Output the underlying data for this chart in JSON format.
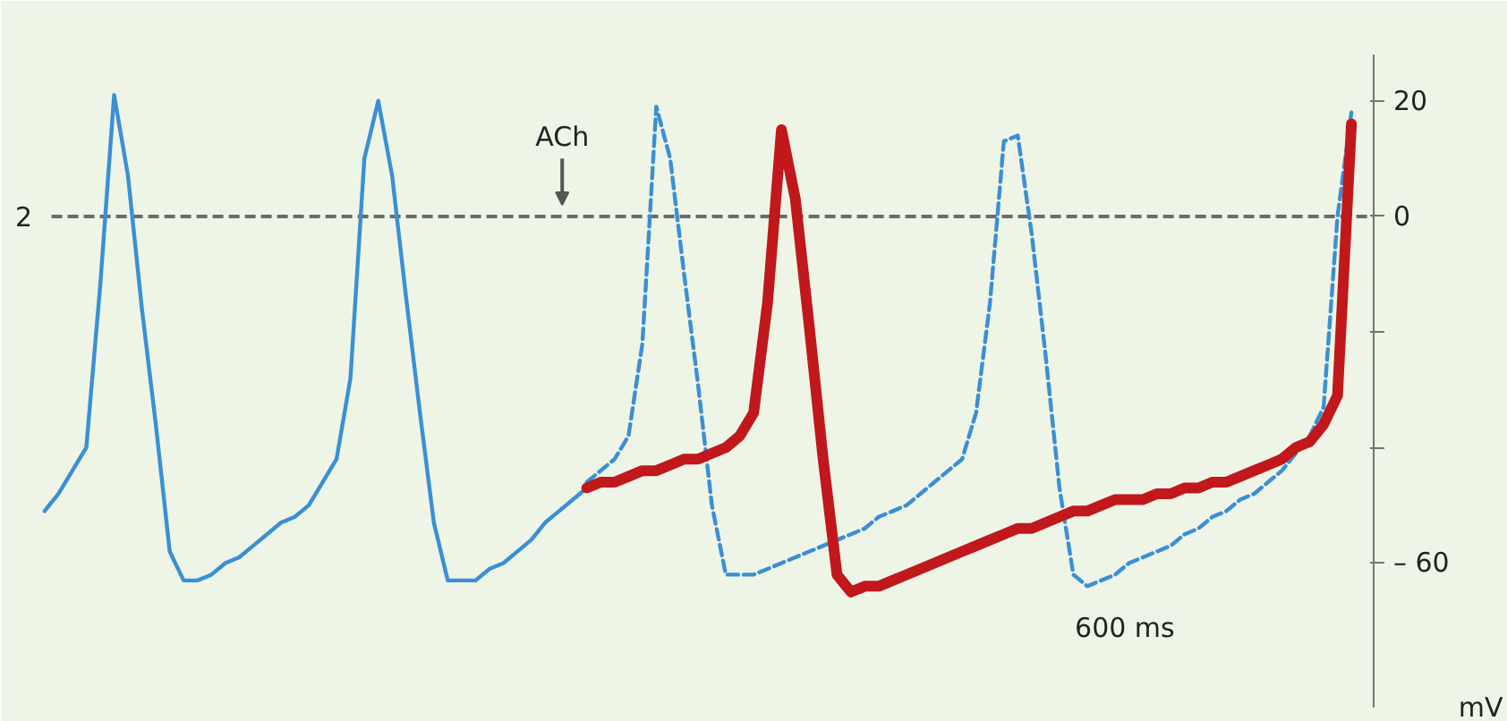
{
  "chart_data": {
    "type": "line",
    "ylabel": "mV",
    "ylim": [
      -85,
      28
    ],
    "yticks": [
      20,
      0,
      {
        "value": -20,
        "label": null
      },
      {
        "value": -40,
        "label": null
      },
      {
        "value": -60,
        "label": "– 60"
      }
    ],
    "tick_labels": "y",
    "grid": false,
    "marker": "none",
    "categories": [
      null,
      null,
      null,
      null,
      null,
      null,
      null,
      null,
      null,
      null,
      null,
      null,
      null,
      null,
      null,
      null,
      null,
      null,
      null,
      null,
      null,
      null,
      null,
      null,
      null,
      null,
      null,
      null,
      null,
      null,
      null,
      null,
      null,
      null,
      null,
      null,
      null,
      null,
      null,
      null,
      null,
      null,
      null,
      null,
      null,
      null,
      null,
      null,
      null,
      null,
      null,
      null,
      null,
      null,
      null,
      null,
      null,
      null,
      null,
      null,
      null,
      null,
      null,
      null,
      null,
      null,
      null,
      null,
      null,
      null,
      null,
      null,
      null,
      null,
      null,
      null,
      null,
      null,
      null,
      null,
      null,
      null,
      null,
      null,
      null,
      null,
      null,
      null,
      null,
      null,
      null,
      null,
      null,
      null,
      null
    ],
    "series": [
      {
        "color": "#3b8fd6",
        "line_style": "solid",
        "values": [
          -51,
          -48,
          -44,
          -40,
          -12,
          21,
          7,
          -16,
          -36,
          -58,
          -63,
          -63,
          -62,
          -60,
          -59,
          -57,
          -55,
          -53,
          -52,
          -50,
          -46,
          -42,
          -28,
          10,
          20,
          7,
          -14,
          -34,
          -53,
          -63,
          -63,
          -63,
          -61,
          -60,
          -58,
          -56,
          -53,
          -51,
          -49,
          -47,
          null,
          null,
          null,
          null,
          null,
          null,
          null,
          null,
          null,
          null,
          null,
          null,
          null,
          null,
          null,
          null,
          null,
          null,
          null,
          null,
          null,
          null,
          null,
          null,
          null,
          null,
          null,
          null,
          null,
          null,
          null,
          null,
          null,
          null,
          null,
          null,
          null,
          null,
          null,
          null,
          null,
          null,
          null,
          null,
          null,
          null,
          null,
          null,
          null,
          null,
          null,
          null,
          null,
          null,
          null
        ]
      },
      {
        "color": "#3b8fd6",
        "line_style": "dashed",
        "values": [
          null,
          null,
          null,
          null,
          null,
          null,
          null,
          null,
          null,
          null,
          null,
          null,
          null,
          null,
          null,
          null,
          null,
          null,
          null,
          null,
          null,
          null,
          null,
          null,
          null,
          null,
          null,
          null,
          null,
          null,
          null,
          null,
          null,
          null,
          null,
          null,
          null,
          null,
          null,
          -46,
          -44,
          -42,
          -38,
          -22,
          19,
          10,
          -10,
          -29,
          -50,
          -62,
          -62,
          -62,
          -61,
          -60,
          -59,
          -58,
          -57,
          -56,
          -55,
          -54,
          -52,
          -51,
          -50,
          -48,
          -46,
          -44,
          -42,
          -34,
          -15,
          13,
          14,
          -3,
          -24,
          -47,
          -62,
          -64,
          -63,
          -62,
          -60,
          -59,
          -58,
          -57,
          -55,
          -54,
          -52,
          -51,
          -49,
          -48,
          -46,
          -44,
          -41,
          -38,
          -33,
          0,
          18
        ]
      },
      {
        "color": "#c0181b",
        "line_style": "solid",
        "values": [
          null,
          null,
          null,
          null,
          null,
          null,
          null,
          null,
          null,
          null,
          null,
          null,
          null,
          null,
          null,
          null,
          null,
          null,
          null,
          null,
          null,
          null,
          null,
          null,
          null,
          null,
          null,
          null,
          null,
          null,
          null,
          null,
          null,
          null,
          null,
          null,
          null,
          null,
          null,
          -47,
          -46,
          -46,
          -45,
          -44,
          -44,
          -43,
          -42,
          -42,
          -41,
          -40,
          -38,
          -34,
          -15,
          15,
          3,
          -19,
          -42,
          -62,
          -65,
          -64,
          -64,
          -63,
          -62,
          -61,
          -60,
          -59,
          -58,
          -57,
          -56,
          -55,
          -54,
          -54,
          -53,
          -52,
          -51,
          -51,
          -50,
          -49,
          -49,
          -49,
          -48,
          -48,
          -47,
          -47,
          -46,
          -46,
          -45,
          -44,
          -43,
          -42,
          -40,
          -39,
          -36,
          -31,
          16
        ]
      }
    ],
    "ref_lines": [
      {
        "axis": "y",
        "value": 0,
        "color": "#6b6b6b",
        "line_style": "dashed"
      }
    ],
    "annotations": [
      "2",
      {
        "text": "ACh",
        "y": 0
      },
      "600 ms"
    ]
  }
}
